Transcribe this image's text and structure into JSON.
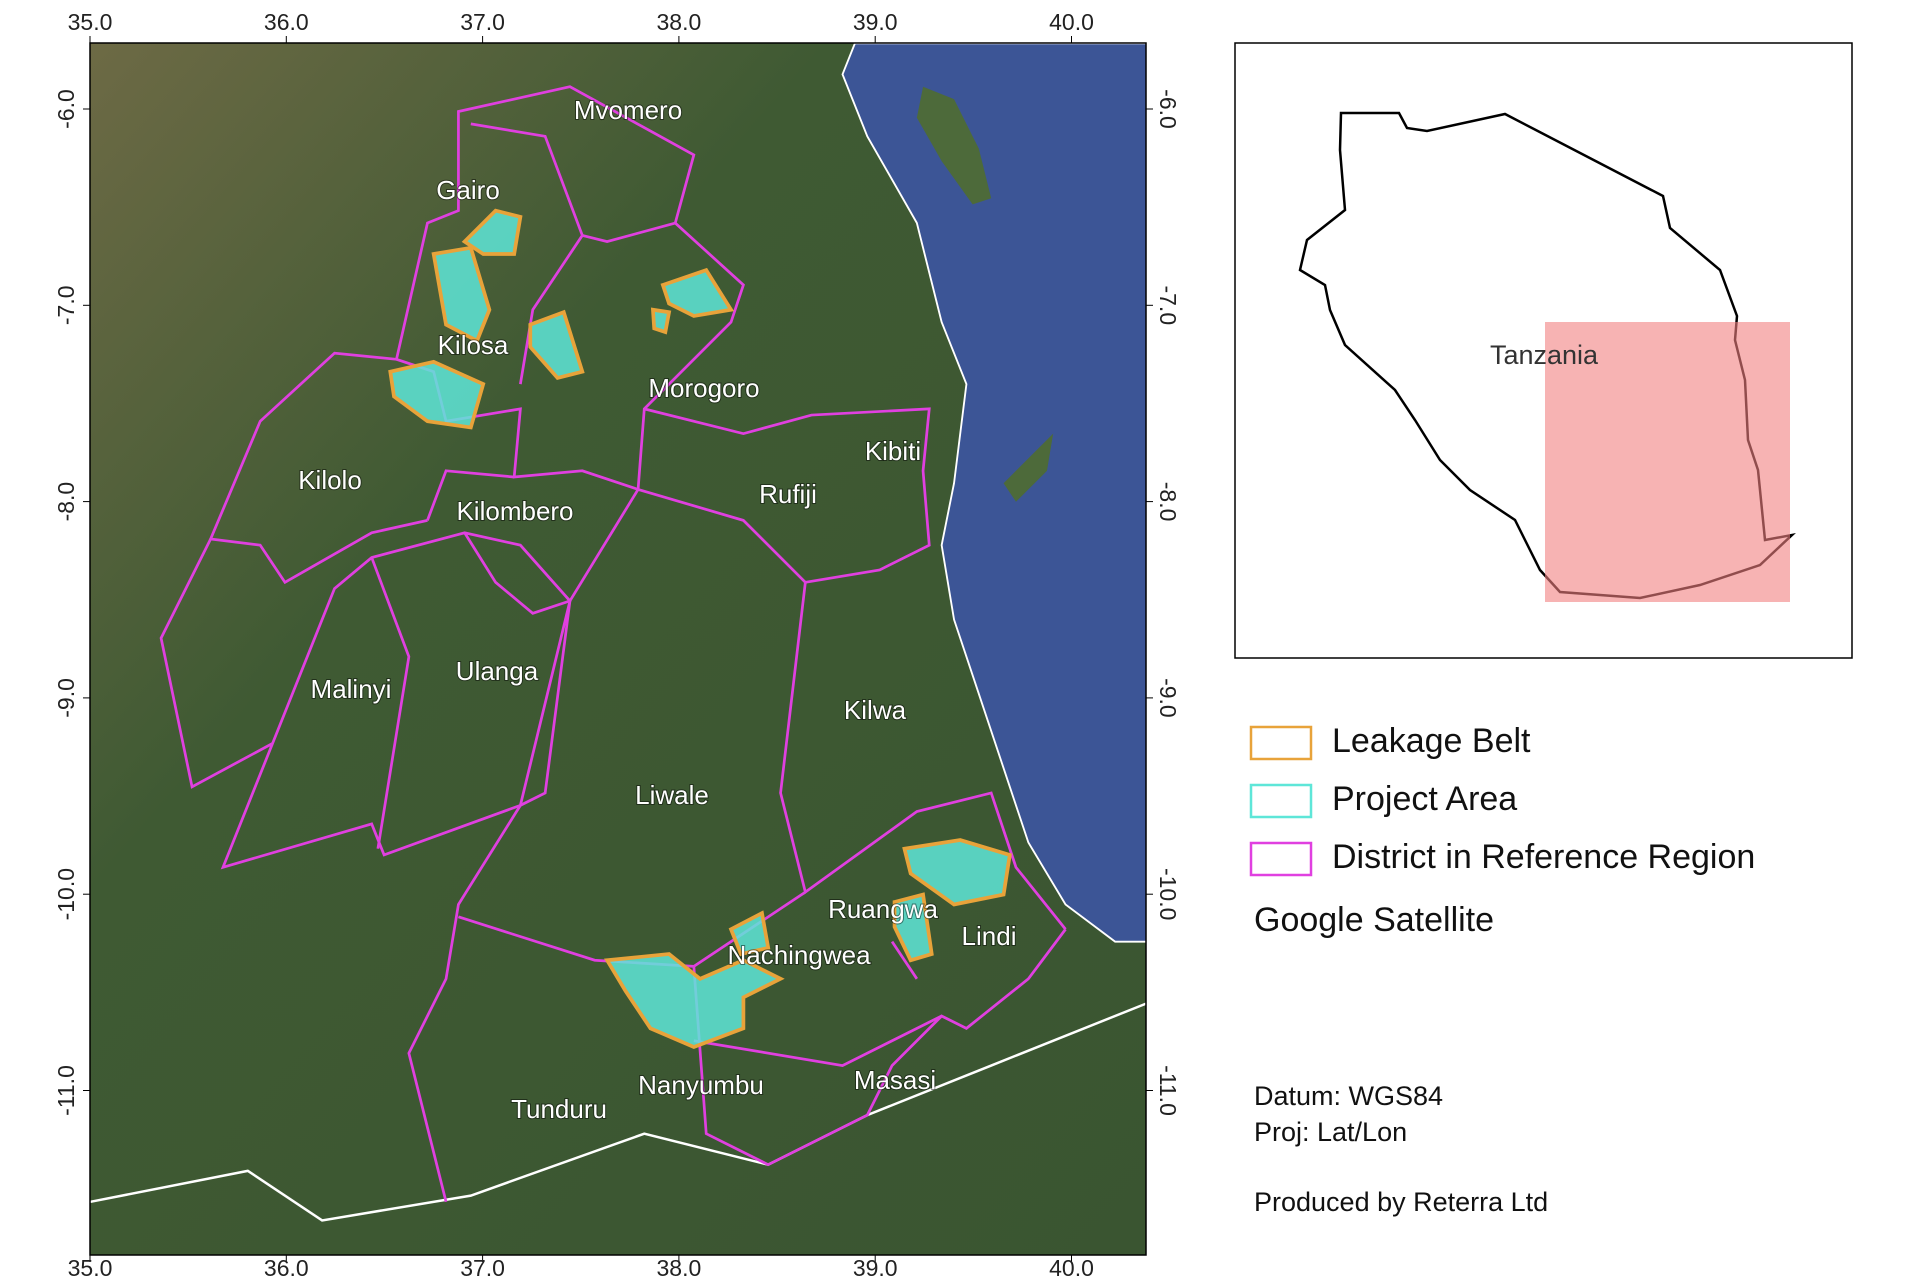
{
  "map": {
    "xticks": [
      {
        "value": 35,
        "label": "35.0"
      },
      {
        "value": 36,
        "label": "36.0"
      },
      {
        "value": 37,
        "label": "37.0"
      },
      {
        "value": 38,
        "label": "38.0"
      },
      {
        "value": 39,
        "label": "39.0"
      },
      {
        "value": 40,
        "label": "40.0"
      }
    ],
    "yticks": [
      {
        "value": -6,
        "label": "-6.0"
      },
      {
        "value": -7,
        "label": "-7.0"
      },
      {
        "value": -8,
        "label": "-8.0"
      },
      {
        "value": -9,
        "label": "-9.0"
      },
      {
        "value": -10,
        "label": "-10.0"
      },
      {
        "value": -11,
        "label": "-11.0"
      }
    ],
    "districts": [
      "Mvomero",
      "Gairo",
      "Kilosa",
      "Morogoro",
      "Kibiti",
      "Kilolo",
      "Kilombero",
      "Rufiji",
      "Malinyi",
      "Ulanga",
      "Kilwa",
      "Liwale",
      "Ruangwa",
      "Lindi",
      "Nachingwea",
      "Nanyumbu",
      "Masasi",
      "Tunduru"
    ],
    "inset": {
      "label": "Tanzania"
    },
    "legend": [
      {
        "name": "Leakage Belt",
        "color": "#e8a33a"
      },
      {
        "name": "Project Area",
        "color": "#5ee6d8"
      },
      {
        "name": "District in Reference Region",
        "color": "#e040e0"
      }
    ],
    "basemap": "Google Satellite",
    "notes": [
      "Datum: WGS84",
      "Proj: Lat/Lon",
      "Produced by Reterra Ltd"
    ]
  }
}
